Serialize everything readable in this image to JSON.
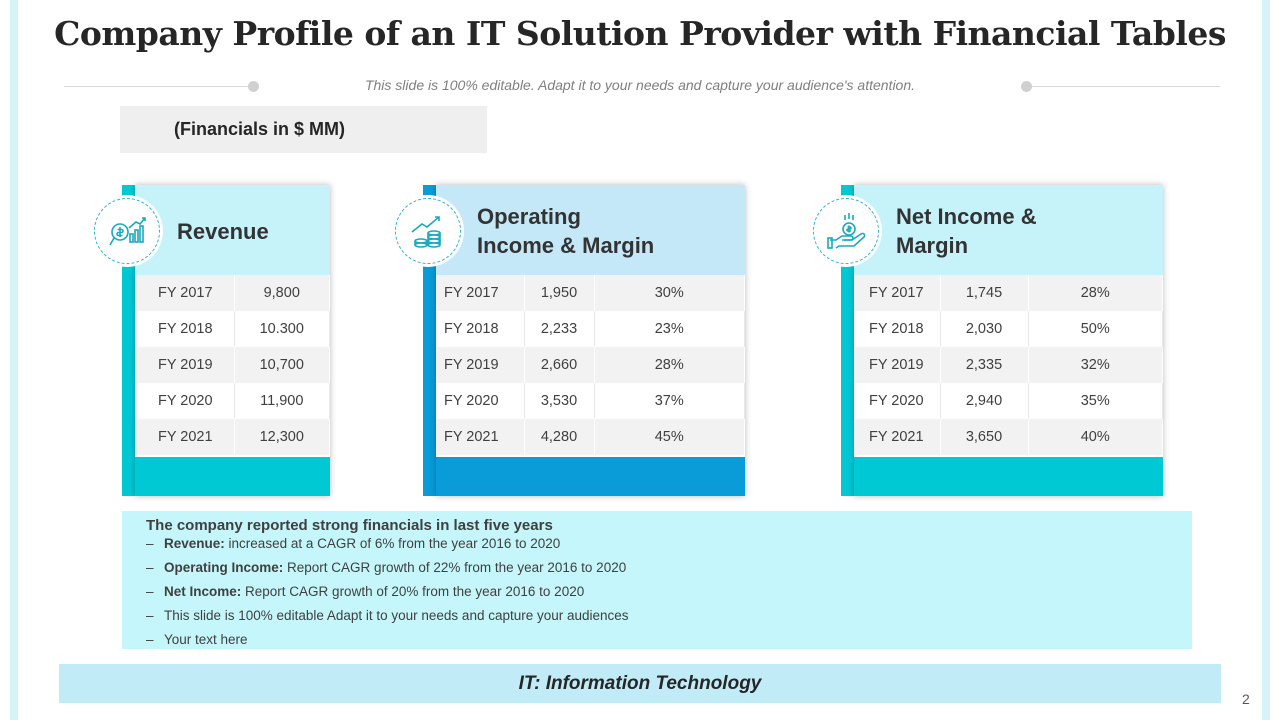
{
  "title": "Company Profile of an IT Solution Provider with Financial Tables",
  "subtitle": "This slide is 100% editable. Adapt it to your needs and capture your audience's attention.",
  "financials_label": "(Financials in $ MM)",
  "colors": {
    "teal": "#00c9d5",
    "blue": "#0a9bd9",
    "light_cyan": "#c6f3fa",
    "light_blue": "#c4e8f8"
  },
  "revenue": {
    "title": "Revenue",
    "icon": "revenue-chart-icon",
    "rows": [
      {
        "year": "FY 2017",
        "value": "9,800"
      },
      {
        "year": "FY 2018",
        "value": "10.300"
      },
      {
        "year": "FY 2019",
        "value": "10,700"
      },
      {
        "year": "FY 2020",
        "value": "11,900"
      },
      {
        "year": "FY 2021",
        "value": "12,300"
      }
    ]
  },
  "operating": {
    "title_line1": "Operating",
    "title_line2": "Income & Margin",
    "icon": "coins-growth-icon",
    "rows": [
      {
        "year": "FY 2017",
        "value": "1,950",
        "margin": "30%"
      },
      {
        "year": "FY 2018",
        "value": "2,233",
        "margin": "23%"
      },
      {
        "year": "FY 2019",
        "value": "2,660",
        "margin": "28%"
      },
      {
        "year": "FY 2020",
        "value": "3,530",
        "margin": "37%"
      },
      {
        "year": "FY 2021",
        "value": "4,280",
        "margin": "45%"
      }
    ]
  },
  "net_income": {
    "title_line1": "Net Income &",
    "title_line2": "Margin",
    "icon": "hand-coin-icon",
    "rows": [
      {
        "year": "FY 2017",
        "value": "1,745",
        "margin": "28%"
      },
      {
        "year": "FY 2018",
        "value": "2,030",
        "margin": "50%"
      },
      {
        "year": "FY 2019",
        "value": "2,335",
        "margin": "32%"
      },
      {
        "year": "FY 2020",
        "value": "2,940",
        "margin": "35%"
      },
      {
        "year": "FY 2021",
        "value": "3,650",
        "margin": "40%"
      }
    ]
  },
  "summary": {
    "heading": "The company reported strong financials in last five years",
    "items": [
      {
        "label": "Revenue:",
        "text": "increased at a CAGR of 6% from the year 2016 to 2020"
      },
      {
        "label": "Operating Income:",
        "text": "Report CAGR growth of 22% from the year 2016 to 2020"
      },
      {
        "label": "Net Income:",
        "text": "Report CAGR growth of 20% from the year 2016 to 2020"
      },
      {
        "label": "",
        "text": "This slide is 100% editable Adapt it to your needs and capture your audiences"
      },
      {
        "label": "",
        "text": "Your text here"
      }
    ]
  },
  "footer": "IT: Information Technology",
  "page_number": "2"
}
